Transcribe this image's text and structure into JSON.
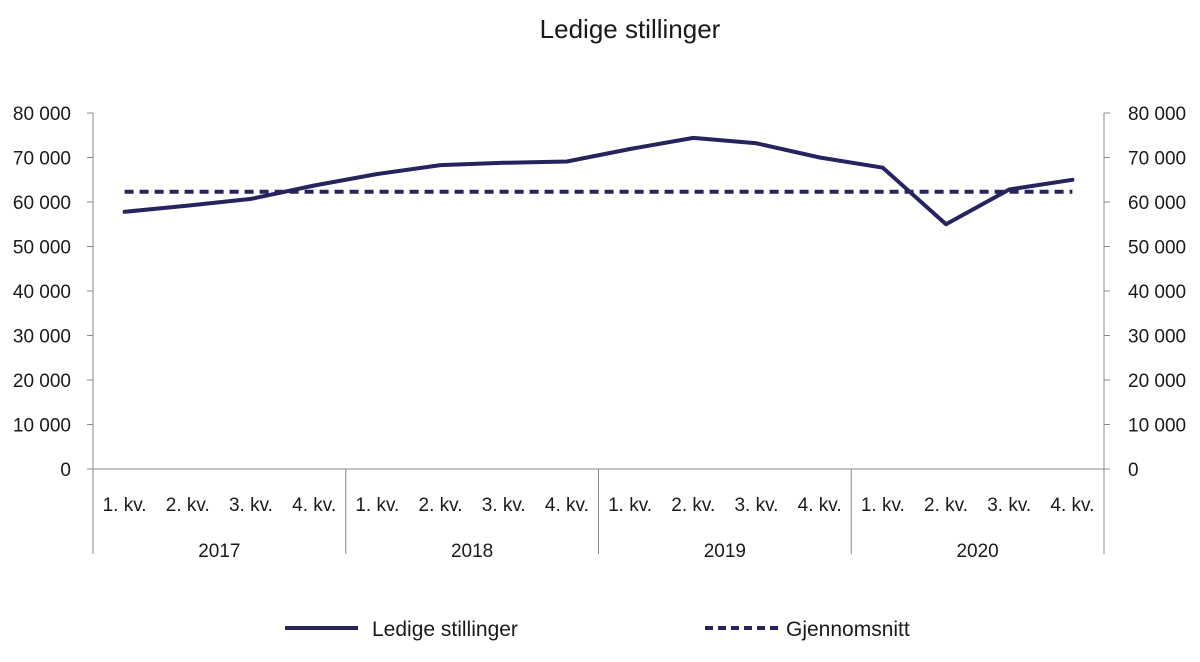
{
  "chart_data": {
    "type": "line",
    "title": "Ledige stillinger",
    "categories": [
      "1. kv.",
      "2. kv.",
      "3. kv.",
      "4. kv.",
      "1. kv.",
      "2. kv.",
      "3. kv.",
      "4. kv.",
      "1. kv.",
      "2. kv.",
      "3. kv.",
      "4. kv.",
      "1. kv.",
      "2. kv.",
      "3. kv.",
      "4. kv."
    ],
    "groups": [
      "2017",
      "2018",
      "2019",
      "2020"
    ],
    "series": [
      {
        "name": "Ledige stillinger",
        "style": "solid",
        "values": [
          57800,
          59200,
          60700,
          63700,
          66300,
          68300,
          68800,
          69100,
          71900,
          74400,
          73200,
          70000,
          67700,
          55000,
          62800,
          65000
        ]
      },
      {
        "name": "Gjennomsnitt",
        "style": "dashed",
        "values": [
          62300,
          62300,
          62300,
          62300,
          62300,
          62300,
          62300,
          62300,
          62300,
          62300,
          62300,
          62300,
          62300,
          62300,
          62300,
          62300
        ]
      }
    ],
    "ylim": [
      0,
      80000
    ],
    "yticks": [
      "0",
      "10 000",
      "20 000",
      "30 000",
      "40 000",
      "50 000",
      "60 000",
      "70 000",
      "80 000"
    ],
    "y2ticks": [
      "0",
      "10 000",
      "20 000",
      "30 000",
      "40 000",
      "50 000",
      "60 000",
      "70 000",
      "80 000"
    ],
    "grid": false,
    "legend_position": "bottom",
    "colors": {
      "series": "#26235e",
      "axis": "#888888"
    }
  }
}
